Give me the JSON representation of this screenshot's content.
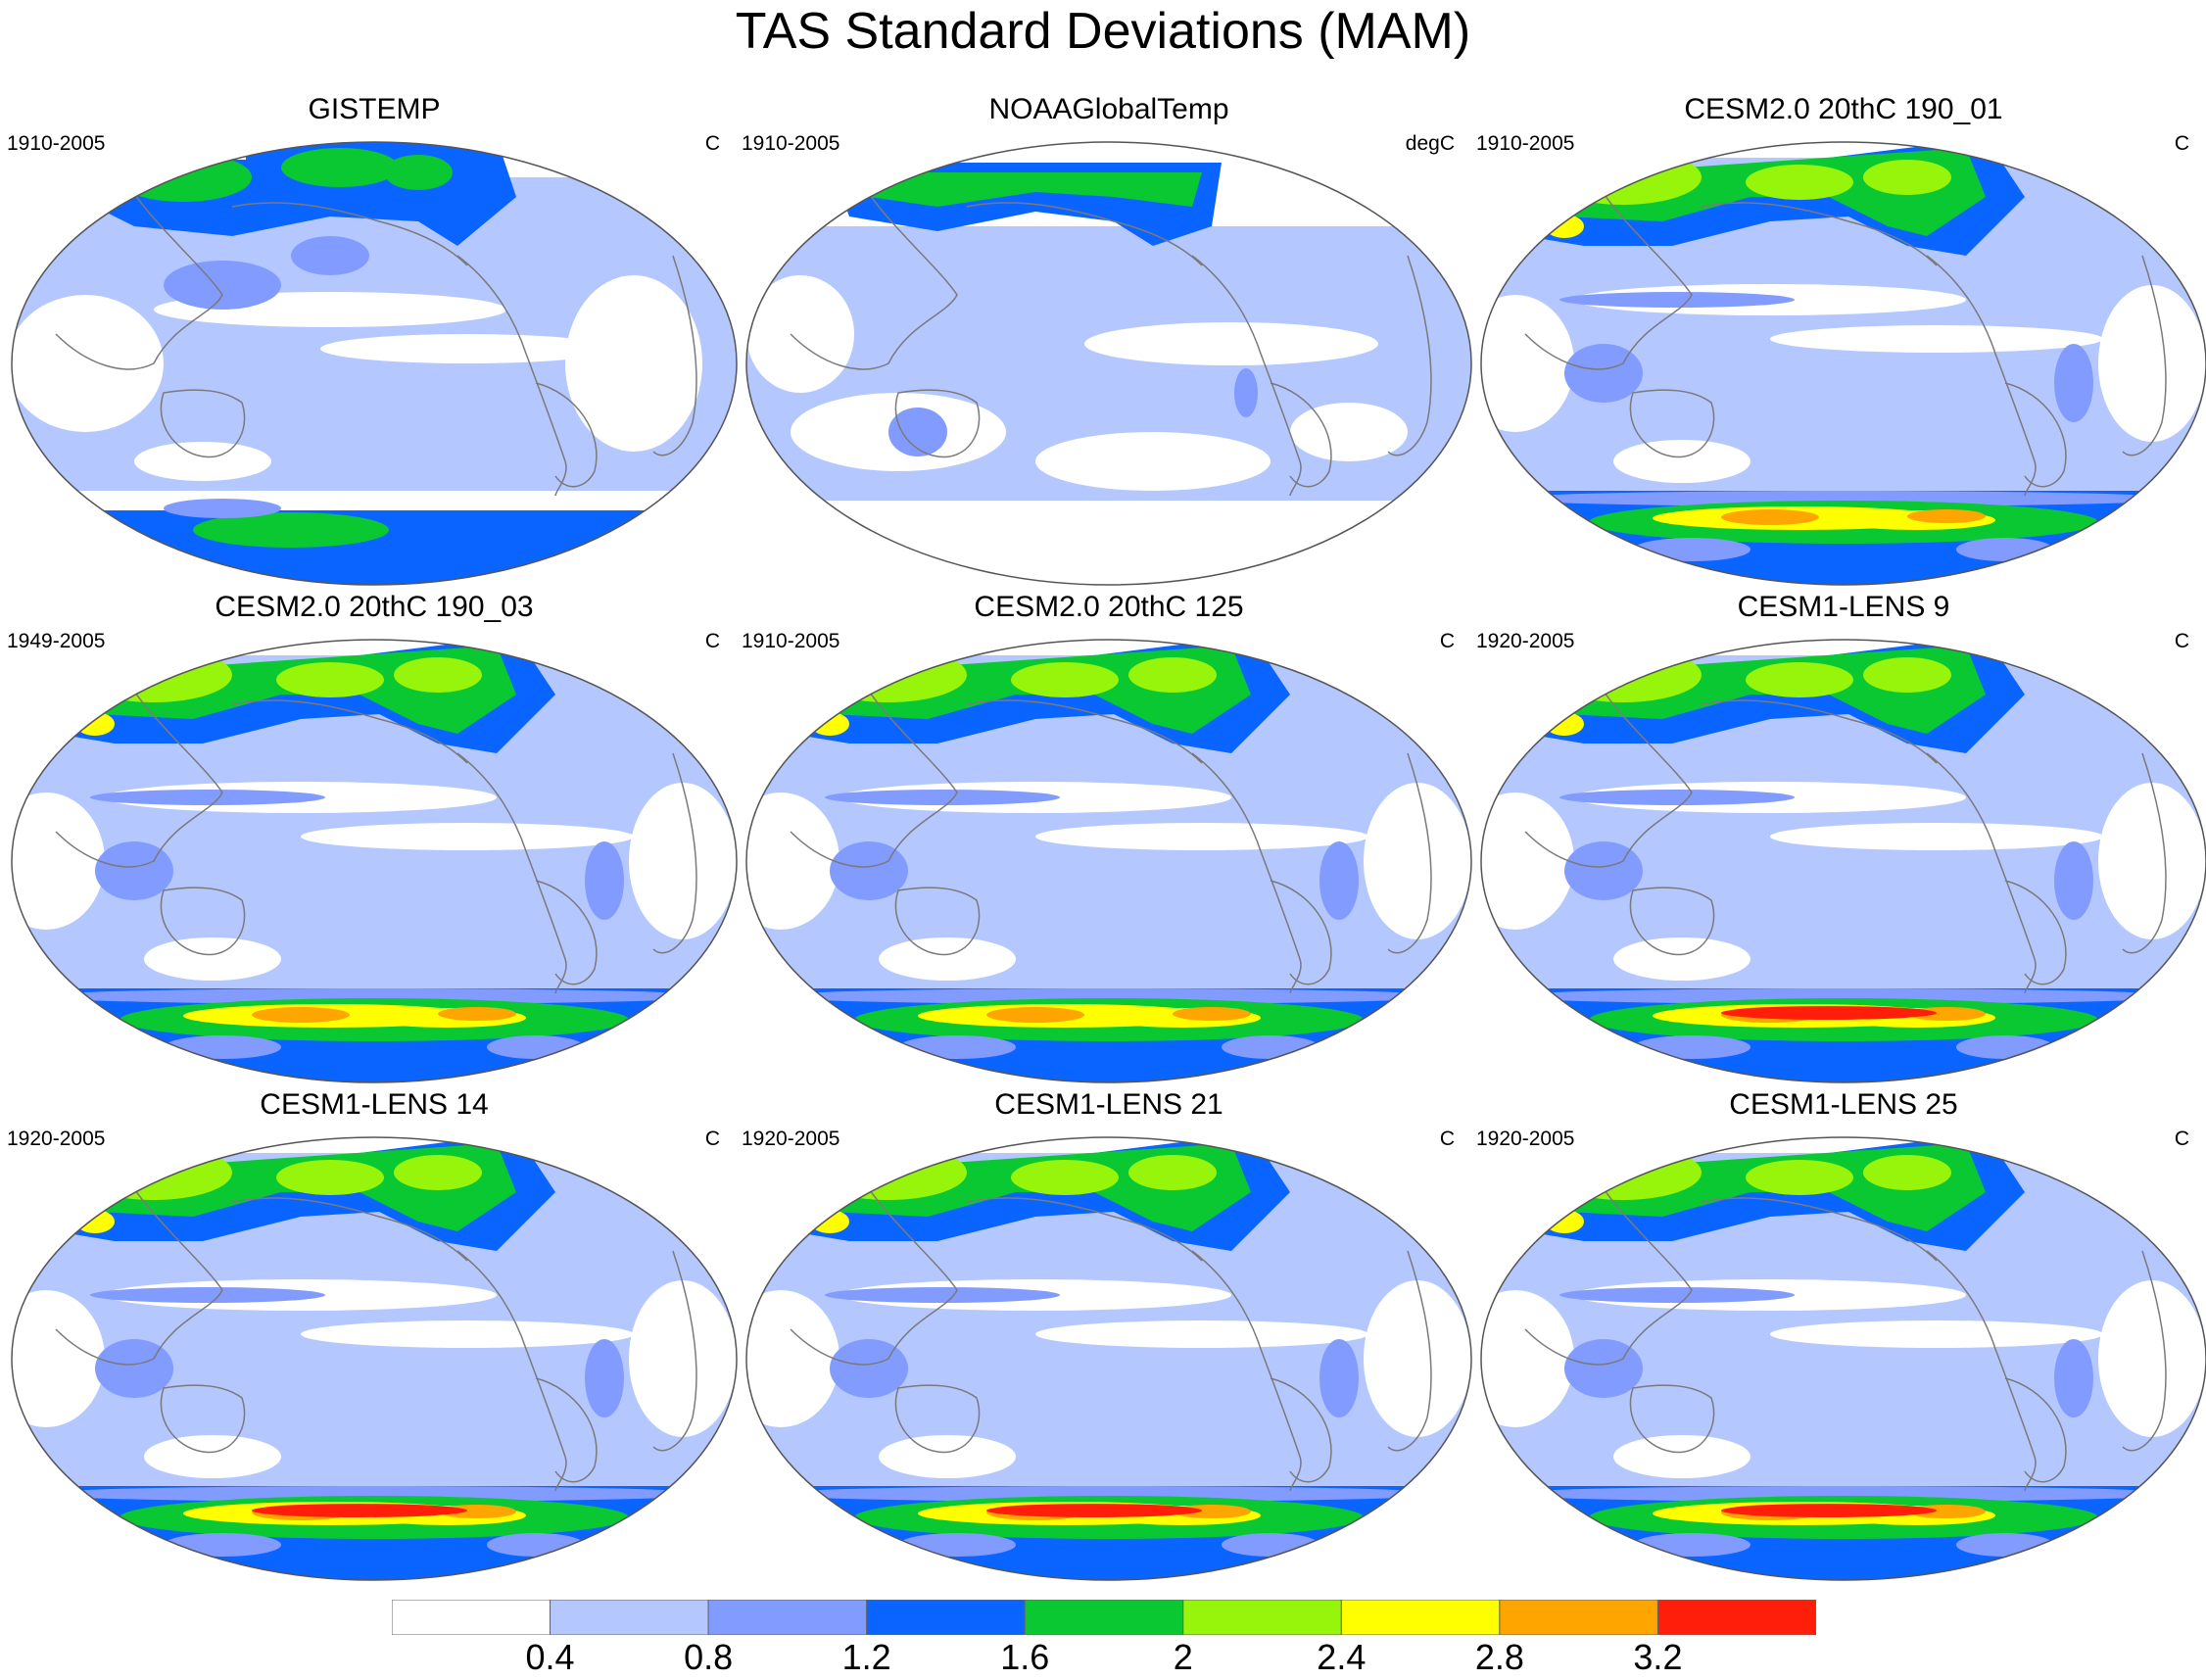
{
  "title": "TAS Standard Deviations (MAM)",
  "panels": [
    {
      "title": "GISTEMP",
      "period": "1910-2005",
      "units": "C",
      "style": "obs1"
    },
    {
      "title": "NOAAGlobalTemp",
      "period": "1910-2005",
      "units": "degC",
      "style": "obs2"
    },
    {
      "title": "CESM2.0 20thC 190_01",
      "period": "1910-2005",
      "units": "C",
      "style": "model"
    },
    {
      "title": "CESM2.0 20thC 190_03",
      "period": "1949-2005",
      "units": "C",
      "style": "model"
    },
    {
      "title": "CESM2.0 20thC 125",
      "period": "1910-2005",
      "units": "C",
      "style": "model"
    },
    {
      "title": "CESM1-LENS 9",
      "period": "1920-2005",
      "units": "C",
      "style": "model"
    },
    {
      "title": "CESM1-LENS 14",
      "period": "1920-2005",
      "units": "C",
      "style": "model"
    },
    {
      "title": "CESM1-LENS 21",
      "period": "1920-2005",
      "units": "C",
      "style": "model"
    },
    {
      "title": "CESM1-LENS 25",
      "period": "1920-2005",
      "units": "C",
      "style": "model"
    }
  ],
  "colorbar": {
    "colors": [
      "#ffffff",
      "#b4c8ff",
      "#829bff",
      "#0a64ff",
      "#0ac832",
      "#96f50a",
      "#ffff00",
      "#ffa500",
      "#ff1e0a"
    ],
    "labels": [
      "0.4",
      "0.8",
      "1.2",
      "1.6",
      "2",
      "2.4",
      "2.8",
      "3.2"
    ]
  }
}
